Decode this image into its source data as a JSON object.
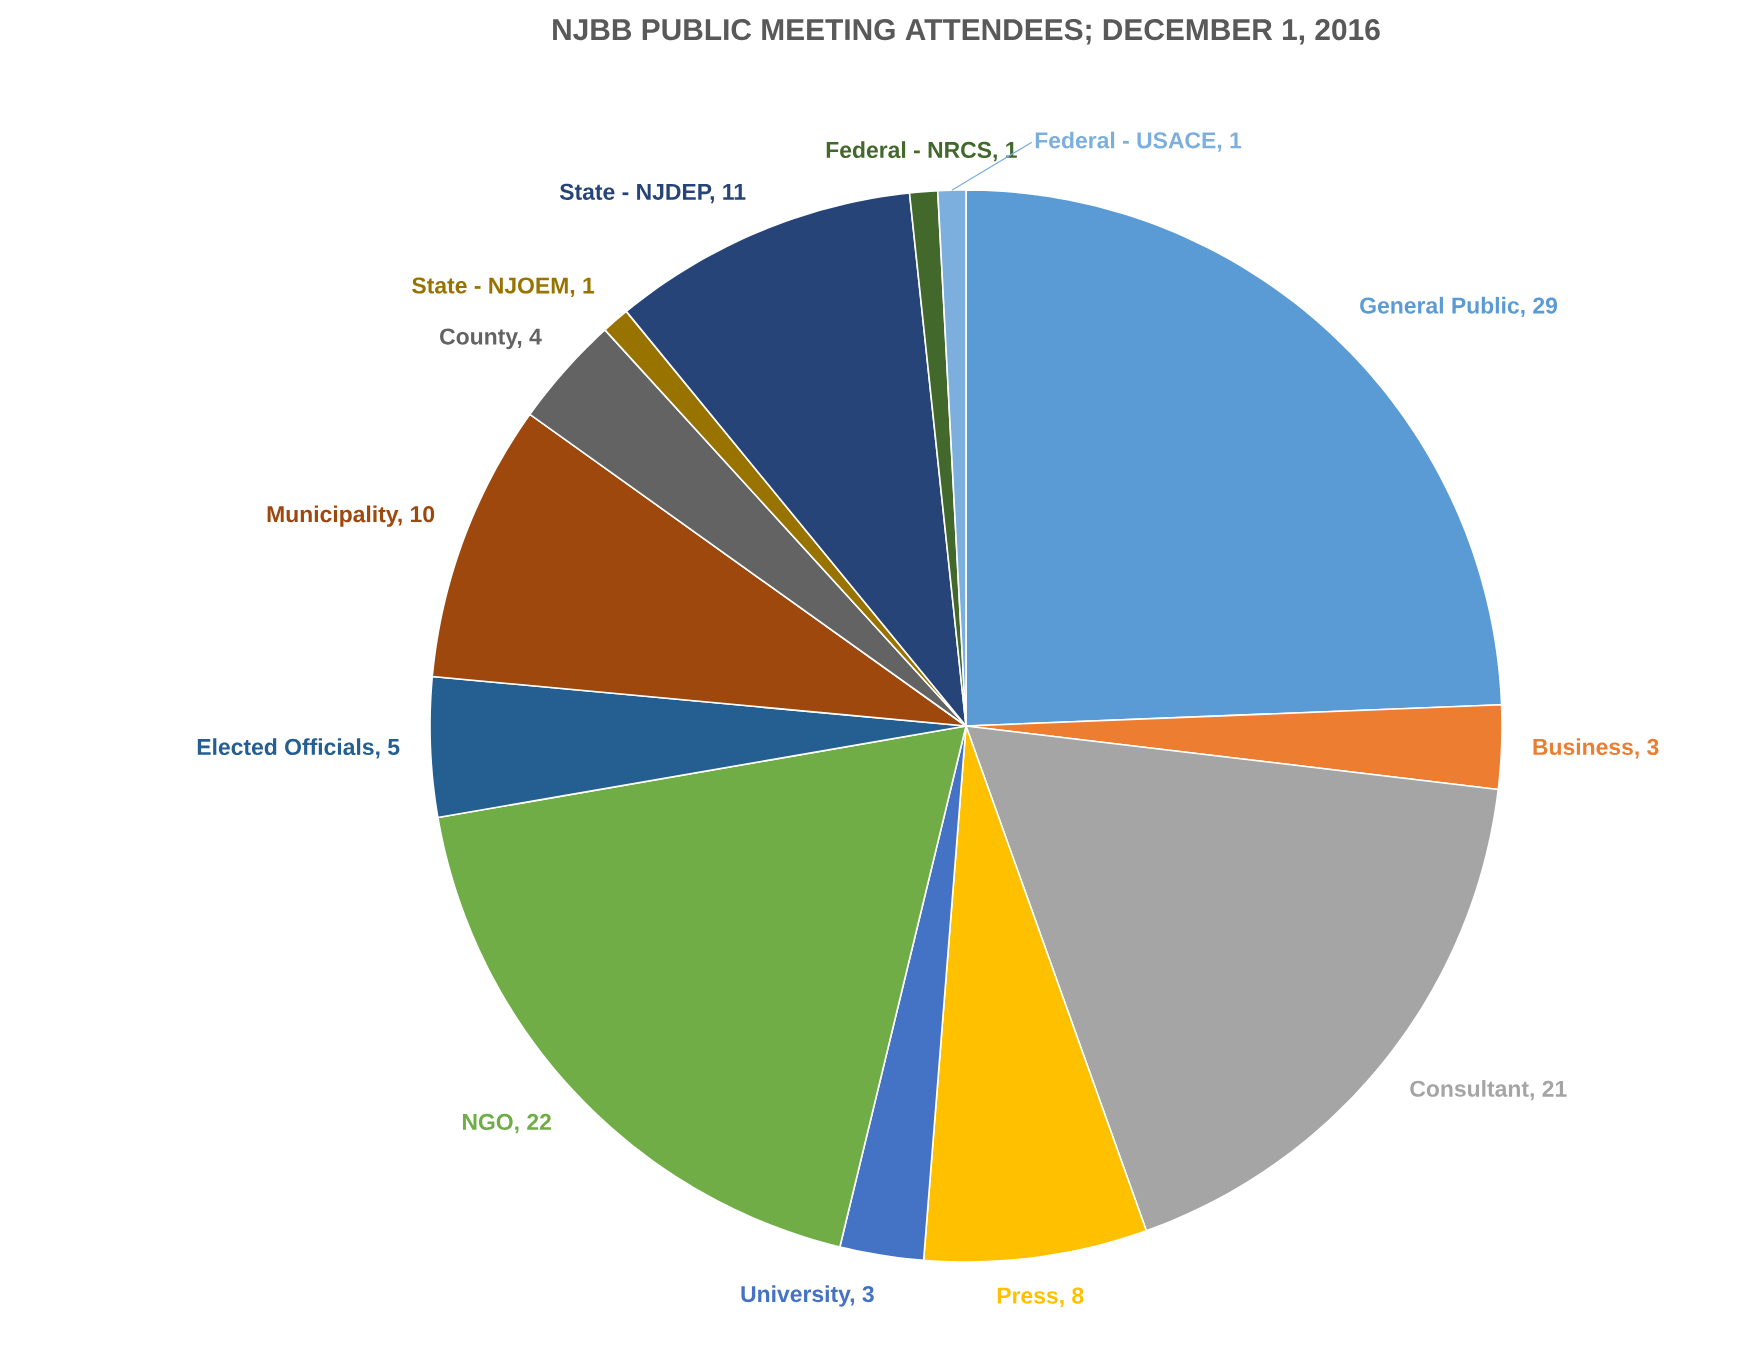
{
  "chart_data": {
    "type": "pie",
    "title": "NJBB PUBLIC MEETING ATTENDEES; DECEMBER 1, 2016",
    "categories": [
      "General Public, 29",
      "Business, 3",
      "Consultant, 21",
      "Press, 8",
      "University, 3",
      "NGO, 22",
      "Elected Officials, 5",
      "Municipality, 10",
      "County, 4",
      "State - NJOEM, 1",
      "State - NJDEP, 11",
      "Federal - NRCS, 1",
      "Federal - USACE, 1"
    ],
    "values": [
      29,
      3,
      21,
      8,
      3,
      22,
      5,
      10,
      4,
      1,
      11,
      1,
      1
    ],
    "colors": [
      "#5b9bd5",
      "#ed7d31",
      "#a5a5a5",
      "#ffc000",
      "#4472c4",
      "#70ad47",
      "#255e91",
      "#9e480e",
      "#636363",
      "#997300",
      "#264478",
      "#43682b",
      "#7cafdd"
    ]
  }
}
